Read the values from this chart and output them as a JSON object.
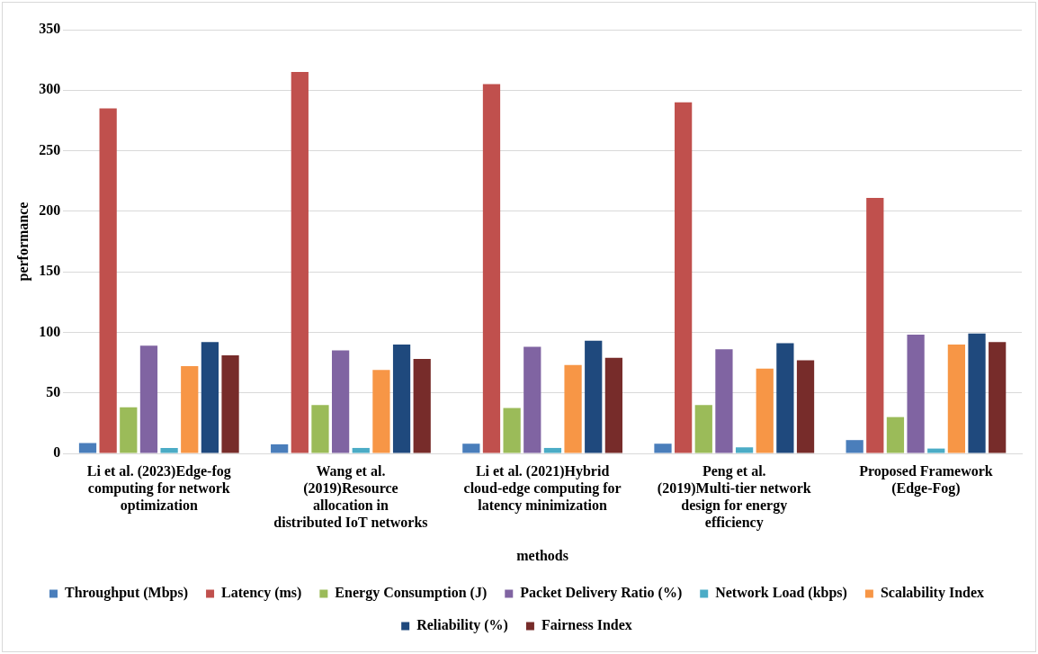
{
  "chart_data": {
    "type": "bar",
    "xlabel": "methods",
    "ylabel": "performance",
    "categories": [
      "Li et al. (2023)Edge-fog computing for network optimization",
      "Wang et al. (2019)Resource allocation in distributed IoT networks",
      "Li et al. (2021)Hybrid cloud-edge computing for latency minimization",
      "Peng et al. (2019)Multi-tier network design for energy efficiency",
      "Proposed Framework (Edge-Fog)"
    ],
    "series": [
      {
        "name": "Throughput (Mbps)",
        "color": "#4a7ebb",
        "values": [
          8.5,
          7.5,
          8,
          8,
          11
        ]
      },
      {
        "name": "Latency (ms)",
        "color": "#c0504d",
        "values": [
          285,
          315,
          305,
          290,
          211
        ]
      },
      {
        "name": "Energy Consumption (J)",
        "color": "#9bbb59",
        "values": [
          38,
          40,
          37.5,
          40,
          30
        ]
      },
      {
        "name": "Packet Delivery Ratio (%)",
        "color": "#8064a2",
        "values": [
          89,
          85,
          88,
          86,
          98
        ]
      },
      {
        "name": "Network Load (kbps)",
        "color": "#4bacc6",
        "values": [
          4.5,
          4.5,
          4.5,
          5,
          4
        ]
      },
      {
        "name": "Scalability Index",
        "color": "#f79646",
        "values": [
          72,
          69,
          73,
          70,
          90
        ]
      },
      {
        "name": "Reliability (%)",
        "color": "#1f497d",
        "values": [
          92,
          90,
          93,
          91,
          99
        ]
      },
      {
        "name": "Fairness Index",
        "color": "#772c2a",
        "values": [
          81,
          78,
          79,
          77,
          92
        ]
      }
    ],
    "ylim": [
      0,
      350
    ],
    "yticks": [
      0,
      50,
      100,
      150,
      200,
      250,
      300,
      350
    ],
    "grid": "y",
    "legend": "bottom"
  }
}
